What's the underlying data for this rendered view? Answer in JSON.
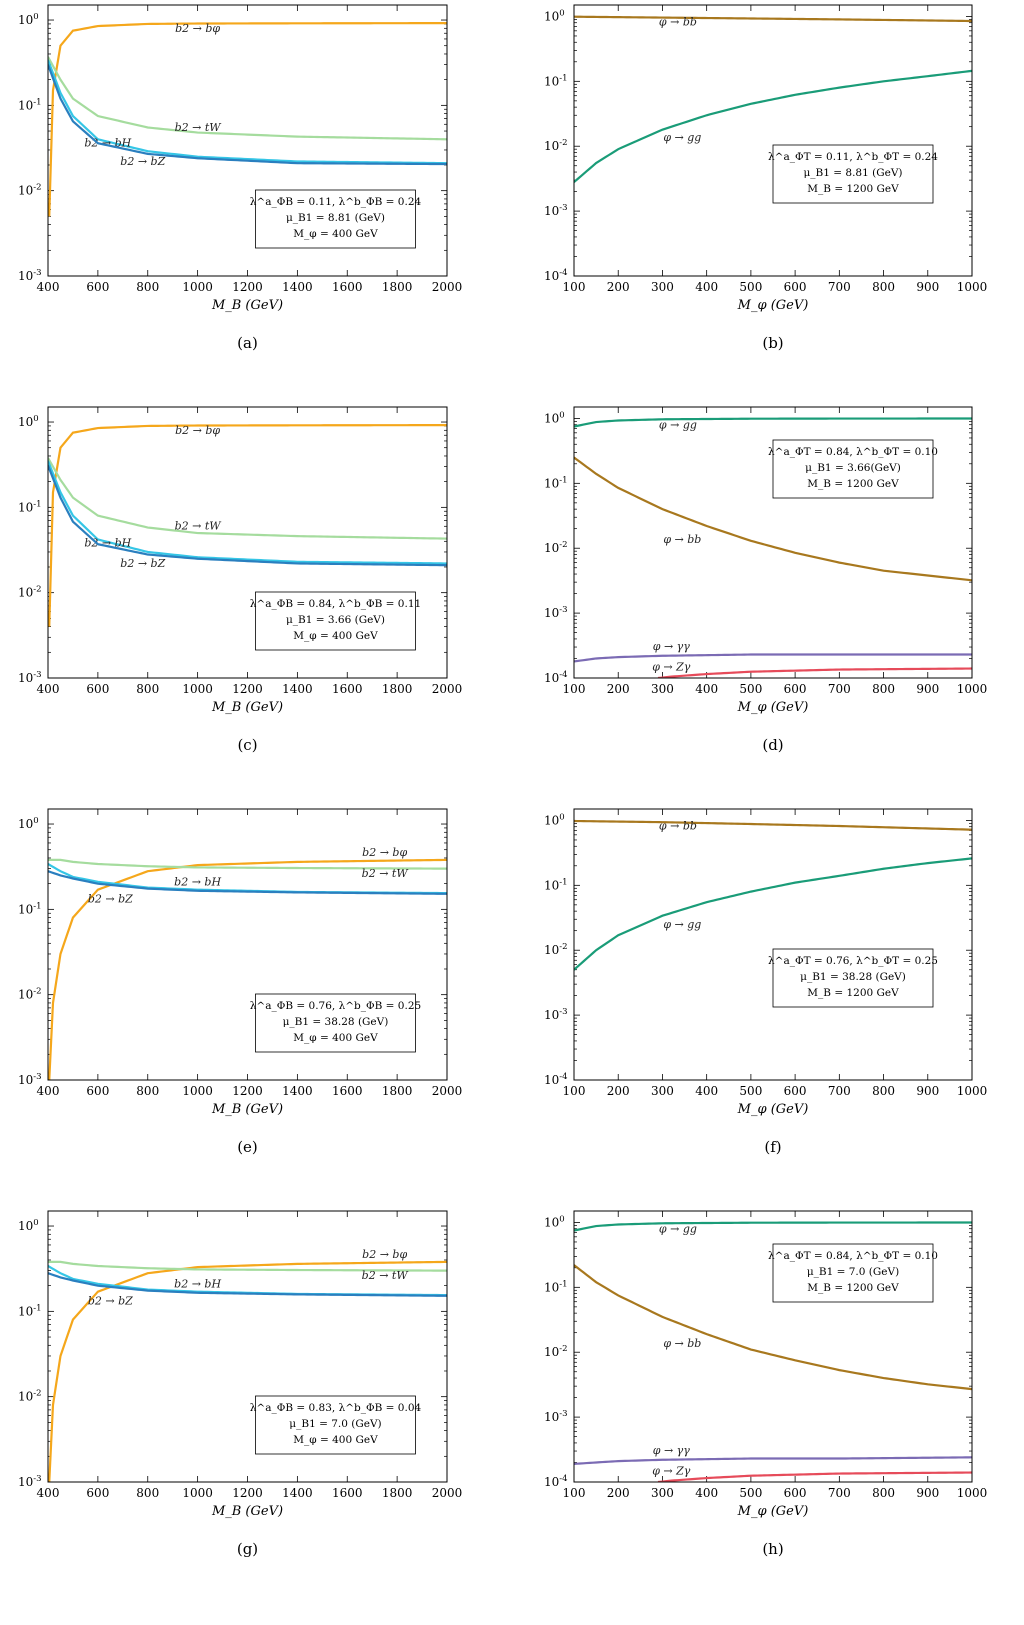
{
  "colors": {
    "orange": "#f5a71b",
    "lightgreen": "#a5dc9e",
    "cyan": "#35c6e6",
    "blue": "#2a7fbf",
    "teal": "#1a9c78",
    "brown": "#a8781e",
    "purple": "#7b6bb4",
    "red": "#e64b5a"
  },
  "chart_data": [
    {
      "type": "line",
      "panel": "(a)",
      "xlabel": "M_B (GeV)",
      "ylabel": "",
      "xlim": [
        400,
        2000
      ],
      "ylim": [
        0.001,
        1.5
      ],
      "yscale": "log",
      "xticks": [
        "400",
        "600",
        "800",
        "1000",
        "1200",
        "1400",
        "1600",
        "1800",
        "2000"
      ],
      "yticks": [
        "10^0",
        "10^-1",
        "10^-2",
        "10^-3"
      ],
      "info": [
        "λ^a_ΦB = 0.11, λ^b_ΦB = 0.24",
        "μ_B1 = 8.81 (GeV)",
        "M_φ = 400 GeV"
      ],
      "series": [
        {
          "name": "b2 → bφ",
          "color": "orange",
          "x": [
            405,
            420,
            450,
            500,
            600,
            800,
            1000,
            1400,
            2000
          ],
          "y": [
            0.005,
            0.15,
            0.5,
            0.75,
            0.85,
            0.9,
            0.91,
            0.915,
            0.92
          ],
          "label_at": [
            1000,
            0.72
          ]
        },
        {
          "name": "b2 → tW",
          "color": "lightgreen",
          "x": [
            400,
            450,
            500,
            600,
            800,
            1000,
            1400,
            2000
          ],
          "y": [
            0.37,
            0.2,
            0.12,
            0.075,
            0.055,
            0.048,
            0.043,
            0.04
          ],
          "label_at": [
            1000,
            0.05
          ]
        },
        {
          "name": "b2 → bH",
          "color": "cyan",
          "x": [
            400,
            450,
            500,
            600,
            800,
            1000,
            1400,
            2000
          ],
          "y": [
            0.34,
            0.14,
            0.075,
            0.04,
            0.029,
            0.025,
            0.022,
            0.021
          ],
          "label_at": [
            640,
            0.033
          ]
        },
        {
          "name": "b2 → bZ",
          "color": "blue",
          "x": [
            400,
            450,
            500,
            600,
            800,
            1000,
            1400,
            2000
          ],
          "y": [
            0.3,
            0.12,
            0.065,
            0.036,
            0.027,
            0.024,
            0.021,
            0.0205
          ],
          "label_at": [
            780,
            0.02
          ]
        }
      ]
    },
    {
      "type": "line",
      "panel": "(b)",
      "xlabel": "M_φ (GeV)",
      "ylabel": "",
      "xlim": [
        100,
        1000
      ],
      "ylim": [
        0.0001,
        1.5
      ],
      "yscale": "log",
      "xticks": [
        "100",
        "200",
        "300",
        "400",
        "500",
        "600",
        "700",
        "800",
        "900",
        "1000"
      ],
      "yticks": [
        "10^0",
        "10^-1",
        "10^-2",
        "10^-3",
        "10^-4"
      ],
      "info": [
        "λ^a_ΦT = 0.11, λ^b_ΦT = 0.24",
        "μ_B1 = 8.81 (GeV)",
        "M_B = 1200 GeV"
      ],
      "series": [
        {
          "name": "φ → bb",
          "color": "brown",
          "x": [
            100,
            300,
            500,
            700,
            1000
          ],
          "y": [
            0.99,
            0.96,
            0.93,
            0.9,
            0.85
          ],
          "label_at": [
            335,
            0.72
          ]
        },
        {
          "name": "φ → gg",
          "color": "teal",
          "x": [
            100,
            150,
            200,
            300,
            400,
            500,
            600,
            700,
            800,
            900,
            1000
          ],
          "y": [
            0.0028,
            0.0055,
            0.009,
            0.018,
            0.03,
            0.045,
            0.062,
            0.08,
            0.1,
            0.12,
            0.145
          ],
          "label_at": [
            345,
            0.012
          ]
        }
      ]
    },
    {
      "type": "line",
      "panel": "(c)",
      "xlabel": "M_B (GeV)",
      "ylabel": "",
      "xlim": [
        400,
        2000
      ],
      "ylim": [
        0.001,
        1.5
      ],
      "yscale": "log",
      "xticks": [
        "400",
        "600",
        "800",
        "1000",
        "1200",
        "1400",
        "1600",
        "1800",
        "2000"
      ],
      "yticks": [
        "10^0",
        "10^-1",
        "10^-2",
        "10^-3"
      ],
      "info": [
        "λ^a_ΦB = 0.84, λ^b_ΦB = 0.11",
        "μ_B1 = 3.66 (GeV)",
        "M_φ = 400 GeV"
      ],
      "series": [
        {
          "name": "b2 → bφ",
          "color": "orange",
          "x": [
            405,
            420,
            450,
            500,
            600,
            800,
            1000,
            1400,
            2000
          ],
          "y": [
            0.004,
            0.15,
            0.5,
            0.75,
            0.85,
            0.9,
            0.91,
            0.915,
            0.92
          ],
          "label_at": [
            1000,
            0.72
          ]
        },
        {
          "name": "b2 → tW",
          "color": "lightgreen",
          "x": [
            400,
            450,
            500,
            600,
            800,
            1000,
            1400,
            2000
          ],
          "y": [
            0.38,
            0.21,
            0.13,
            0.08,
            0.058,
            0.05,
            0.046,
            0.043
          ],
          "label_at": [
            1000,
            0.055
          ]
        },
        {
          "name": "b2 → bH",
          "color": "cyan",
          "x": [
            400,
            450,
            500,
            600,
            800,
            1000,
            1400,
            2000
          ],
          "y": [
            0.35,
            0.15,
            0.08,
            0.042,
            0.03,
            0.026,
            0.023,
            0.022
          ],
          "label_at": [
            640,
            0.035
          ]
        },
        {
          "name": "b2 → bZ",
          "color": "blue",
          "x": [
            400,
            450,
            500,
            600,
            800,
            1000,
            1400,
            2000
          ],
          "y": [
            0.31,
            0.13,
            0.068,
            0.037,
            0.028,
            0.025,
            0.022,
            0.021
          ],
          "label_at": [
            780,
            0.02
          ]
        }
      ]
    },
    {
      "type": "line",
      "panel": "(d)",
      "xlabel": "M_φ (GeV)",
      "ylabel": "",
      "xlim": [
        100,
        1000
      ],
      "ylim": [
        0.0001,
        1.5
      ],
      "yscale": "log",
      "xticks": [
        "100",
        "200",
        "300",
        "400",
        "500",
        "600",
        "700",
        "800",
        "900",
        "1000"
      ],
      "yticks": [
        "10^0",
        "10^-1",
        "10^-2",
        "10^-3",
        "10^-4"
      ],
      "info": [
        "λ^a_ΦT = 0.84, λ^b_ΦT = 0.10",
        "μ_B1 = 3.66(GeV)",
        "M_B = 1200 GeV"
      ],
      "series": [
        {
          "name": "φ → gg",
          "color": "teal",
          "x": [
            100,
            150,
            200,
            300,
            500,
            700,
            1000
          ],
          "y": [
            0.75,
            0.88,
            0.93,
            0.97,
            0.99,
            0.995,
            0.997
          ],
          "label_at": [
            335,
            0.7
          ]
        },
        {
          "name": "φ → bb",
          "color": "brown",
          "x": [
            100,
            150,
            200,
            300,
            400,
            500,
            600,
            700,
            800,
            900,
            1000
          ],
          "y": [
            0.25,
            0.14,
            0.085,
            0.04,
            0.022,
            0.013,
            0.0085,
            0.006,
            0.0045,
            0.0038,
            0.0032
          ],
          "label_at": [
            345,
            0.012
          ]
        },
        {
          "name": "φ → γγ",
          "color": "purple",
          "x": [
            100,
            150,
            200,
            300,
            500,
            700,
            1000
          ],
          "y": [
            0.00018,
            0.0002,
            0.00021,
            0.00022,
            0.00023,
            0.00023,
            0.00023
          ],
          "label_at": [
            320,
            0.00027
          ]
        },
        {
          "name": "φ → Zγ",
          "color": "red",
          "x": [
            290,
            320,
            400,
            500,
            700,
            1000
          ],
          "y": [
            0.0001,
            0.000105,
            0.000115,
            0.000125,
            0.000135,
            0.00014
          ],
          "label_at": [
            320,
            0.00013
          ]
        }
      ]
    },
    {
      "type": "line",
      "panel": "(e)",
      "xlabel": "M_B (GeV)",
      "ylabel": "",
      "xlim": [
        400,
        2000
      ],
      "ylim": [
        0.001,
        1.5
      ],
      "yscale": "log",
      "xticks": [
        "400",
        "600",
        "800",
        "1000",
        "1200",
        "1400",
        "1600",
        "1800",
        "2000"
      ],
      "yticks": [
        "10^0",
        "10^-1",
        "10^-2",
        "10^-3"
      ],
      "info": [
        "λ^a_ΦB = 0.76, λ^b_ΦB = 0.25",
        "μ_B1 = 38.28 (GeV)",
        "M_φ = 400 GeV"
      ],
      "series": [
        {
          "name": "b2 → bφ",
          "color": "orange",
          "x": [
            405,
            420,
            450,
            500,
            600,
            800,
            1000,
            1400,
            2000
          ],
          "y": [
            0.001,
            0.008,
            0.03,
            0.08,
            0.17,
            0.28,
            0.33,
            0.36,
            0.38
          ],
          "label_at": [
            1750,
            0.42
          ]
        },
        {
          "name": "b2 → tW",
          "color": "lightgreen",
          "x": [
            400,
            450,
            500,
            600,
            800,
            1000,
            1400,
            2000
          ],
          "y": [
            0.38,
            0.38,
            0.36,
            0.34,
            0.32,
            0.31,
            0.305,
            0.3
          ],
          "label_at": [
            1750,
            0.24
          ]
        },
        {
          "name": "b2 → bH",
          "color": "cyan",
          "x": [
            400,
            450,
            500,
            600,
            800,
            1000,
            1400,
            2000
          ],
          "y": [
            0.34,
            0.28,
            0.24,
            0.21,
            0.18,
            0.17,
            0.16,
            0.155
          ],
          "label_at": [
            1000,
            0.19
          ]
        },
        {
          "name": "b2 → bZ",
          "color": "blue",
          "x": [
            400,
            450,
            500,
            600,
            800,
            1000,
            1400,
            2000
          ],
          "y": [
            0.28,
            0.25,
            0.23,
            0.2,
            0.175,
            0.165,
            0.158,
            0.152
          ],
          "label_at": [
            650,
            0.12
          ]
        }
      ]
    },
    {
      "type": "line",
      "panel": "(f)",
      "xlabel": "M_φ (GeV)",
      "ylabel": "",
      "xlim": [
        100,
        1000
      ],
      "ylim": [
        0.0001,
        1.5
      ],
      "yscale": "log",
      "xticks": [
        "100",
        "200",
        "300",
        "400",
        "500",
        "600",
        "700",
        "800",
        "900",
        "1000"
      ],
      "yticks": [
        "10^0",
        "10^-1",
        "10^-2",
        "10^-3",
        "10^-4"
      ],
      "info": [
        "λ^a_ΦT = 0.76, λ^b_ΦT = 0.25",
        "μ_B1 = 38.28 (GeV)",
        "M_B = 1200 GeV"
      ],
      "series": [
        {
          "name": "φ → bb",
          "color": "brown",
          "x": [
            100,
            300,
            500,
            700,
            1000
          ],
          "y": [
            0.98,
            0.94,
            0.88,
            0.82,
            0.72
          ],
          "label_at": [
            335,
            0.72
          ]
        },
        {
          "name": "φ → gg",
          "color": "teal",
          "x": [
            100,
            150,
            200,
            300,
            400,
            500,
            600,
            700,
            800,
            900,
            1000
          ],
          "y": [
            0.005,
            0.01,
            0.017,
            0.034,
            0.055,
            0.08,
            0.11,
            0.14,
            0.18,
            0.22,
            0.26
          ],
          "label_at": [
            345,
            0.022
          ]
        }
      ]
    },
    {
      "type": "line",
      "panel": "(g)",
      "xlabel": "M_B (GeV)",
      "ylabel": "",
      "xlim": [
        400,
        2000
      ],
      "ylim": [
        0.001,
        1.5
      ],
      "yscale": "log",
      "xticks": [
        "400",
        "600",
        "800",
        "1000",
        "1200",
        "1400",
        "1600",
        "1800",
        "2000"
      ],
      "yticks": [
        "10^0",
        "10^-1",
        "10^-2",
        "10^-3"
      ],
      "info": [
        "λ^a_ΦB = 0.83, λ^b_ΦB = 0.04",
        "μ_B1 = 7.0 (GeV)",
        "M_φ = 400 GeV"
      ],
      "series": [
        {
          "name": "b2 → bφ",
          "color": "orange",
          "x": [
            405,
            420,
            450,
            500,
            600,
            800,
            1000,
            1400,
            2000
          ],
          "y": [
            0.001,
            0.008,
            0.03,
            0.08,
            0.17,
            0.28,
            0.33,
            0.36,
            0.38
          ],
          "label_at": [
            1750,
            0.42
          ]
        },
        {
          "name": "b2 → tW",
          "color": "lightgreen",
          "x": [
            400,
            450,
            500,
            600,
            800,
            1000,
            1400,
            2000
          ],
          "y": [
            0.38,
            0.38,
            0.36,
            0.34,
            0.32,
            0.31,
            0.305,
            0.3
          ],
          "label_at": [
            1750,
            0.24
          ]
        },
        {
          "name": "b2 → bH",
          "color": "cyan",
          "x": [
            400,
            450,
            500,
            600,
            800,
            1000,
            1400,
            2000
          ],
          "y": [
            0.34,
            0.28,
            0.24,
            0.21,
            0.18,
            0.17,
            0.16,
            0.155
          ],
          "label_at": [
            1000,
            0.19
          ]
        },
        {
          "name": "b2 → bZ",
          "color": "blue",
          "x": [
            400,
            450,
            500,
            600,
            800,
            1000,
            1400,
            2000
          ],
          "y": [
            0.28,
            0.25,
            0.23,
            0.2,
            0.175,
            0.165,
            0.158,
            0.152
          ],
          "label_at": [
            650,
            0.12
          ]
        }
      ]
    },
    {
      "type": "line",
      "panel": "(h)",
      "xlabel": "M_φ (GeV)",
      "ylabel": "",
      "xlim": [
        100,
        1000
      ],
      "ylim": [
        0.0001,
        1.5
      ],
      "yscale": "log",
      "xticks": [
        "100",
        "200",
        "300",
        "400",
        "500",
        "600",
        "700",
        "800",
        "900",
        "1000"
      ],
      "yticks": [
        "10^0",
        "10^-1",
        "10^-2",
        "10^-3",
        "10^-4"
      ],
      "info": [
        "λ^a_ΦT = 0.84, λ^b_ΦT = 0.10",
        "μ_B1 = 7.0 (GeV)",
        "M_B = 1200 GeV"
      ],
      "series": [
        {
          "name": "φ → gg",
          "color": "teal",
          "x": [
            100,
            150,
            200,
            300,
            500,
            700,
            1000
          ],
          "y": [
            0.75,
            0.88,
            0.93,
            0.97,
            0.99,
            0.995,
            0.997
          ],
          "label_at": [
            335,
            0.7
          ]
        },
        {
          "name": "φ → bb",
          "color": "brown",
          "x": [
            100,
            150,
            200,
            300,
            400,
            500,
            600,
            700,
            800,
            900,
            1000
          ],
          "y": [
            0.22,
            0.12,
            0.075,
            0.035,
            0.019,
            0.011,
            0.0075,
            0.0053,
            0.004,
            0.0032,
            0.0027
          ],
          "label_at": [
            345,
            0.012
          ]
        },
        {
          "name": "φ → γγ",
          "color": "purple",
          "x": [
            100,
            150,
            200,
            300,
            500,
            700,
            1000
          ],
          "y": [
            0.00019,
            0.0002,
            0.00021,
            0.00022,
            0.00023,
            0.00023,
            0.00024
          ],
          "label_at": [
            320,
            0.00027
          ]
        },
        {
          "name": "φ → Zγ",
          "color": "red",
          "x": [
            290,
            320,
            400,
            500,
            700,
            1000
          ],
          "y": [
            0.0001,
            0.000105,
            0.000115,
            0.000125,
            0.000135,
            0.00014
          ],
          "label_at": [
            320,
            0.00013
          ]
        }
      ]
    }
  ]
}
